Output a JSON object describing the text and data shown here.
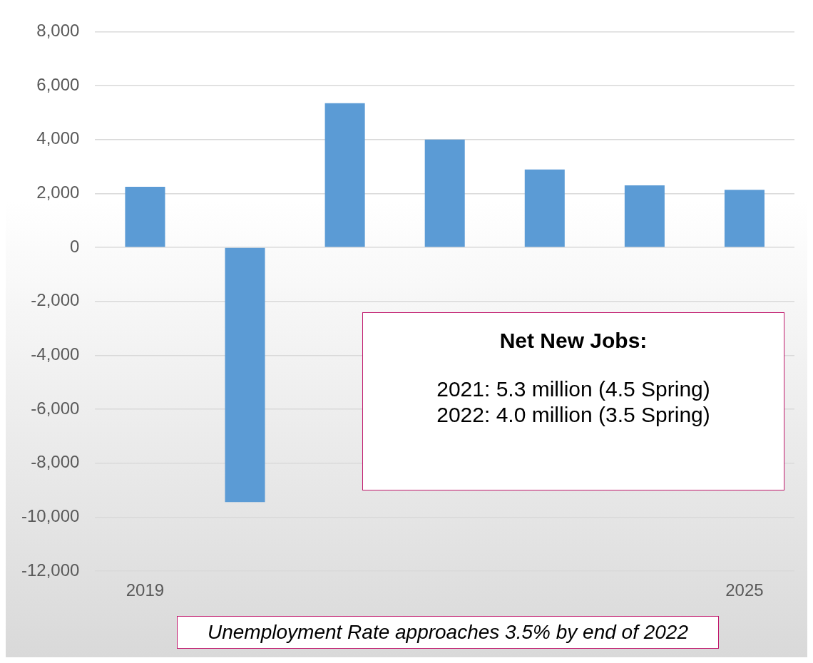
{
  "chart_data": {
    "type": "bar",
    "categories": [
      "2019",
      null,
      null,
      null,
      null,
      null,
      "2025"
    ],
    "values": [
      2250,
      -9440,
      5350,
      4000,
      2890,
      2300,
      2140
    ],
    "color": "#5b9bd5",
    "ylim": [
      -12000,
      8000
    ],
    "yticks": [
      {
        "value": -12000,
        "label": "-12,000"
      },
      {
        "value": -10000,
        "label": "-10,000"
      },
      {
        "value": -8000,
        "label": "-8,000"
      },
      {
        "value": -6000,
        "label": "-6,000"
      },
      {
        "value": -4000,
        "label": "-4,000"
      },
      {
        "value": -2000,
        "label": "-2,000"
      },
      0,
      {
        "value": 2000,
        "label": "2,000"
      },
      {
        "value": 4000,
        "label": "4,000"
      },
      {
        "value": 6000,
        "label": "6,000"
      },
      {
        "value": 8000,
        "label": "8,000"
      }
    ],
    "grid": "y",
    "annotations": [
      "Net New Jobs:",
      "2021: 5.3 million (4.5 Spring)",
      "2022: 4.0 million (3.5 Spring)",
      "Unemployment Rate approaches 3.5% by end of 2022"
    ]
  }
}
